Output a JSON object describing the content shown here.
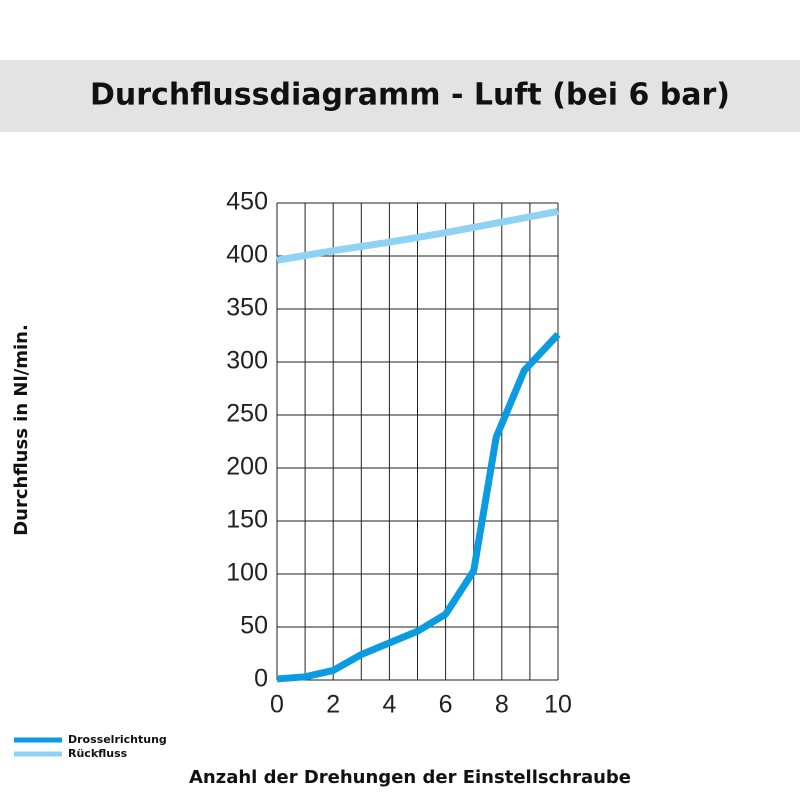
{
  "chart_data": {
    "type": "line",
    "title": "Durchflussdiagramm - Luft (bei 6 bar)",
    "x_label": "Anzahl der Drehungen der Einstellschraube",
    "y_label": "Durchfluss in Nl/min.",
    "xlim": [
      0,
      10
    ],
    "xticks": [
      0,
      2,
      4,
      6,
      8,
      10
    ],
    "xminorticks": [
      1,
      3,
      5,
      7,
      9
    ],
    "ylim": [
      0,
      450
    ],
    "yticks": [
      0,
      50,
      100,
      150,
      200,
      250,
      300,
      350,
      400,
      450
    ],
    "grid": true,
    "legend": "bottom-left",
    "series": [
      {
        "name": "Drosselrichtung",
        "color": "#0a9be0",
        "x": [
          0,
          1,
          2,
          3,
          4,
          5,
          6,
          7,
          7.8,
          8.8,
          10
        ],
        "values": [
          1,
          3,
          9,
          24,
          35,
          46,
          62,
          103,
          229,
          292,
          326
        ]
      },
      {
        "name": "Rückfluss",
        "color": "#8fd3f4",
        "x": [
          0,
          2,
          4,
          6,
          8,
          10
        ],
        "values": [
          396,
          405,
          413,
          422,
          432,
          442
        ]
      }
    ]
  }
}
